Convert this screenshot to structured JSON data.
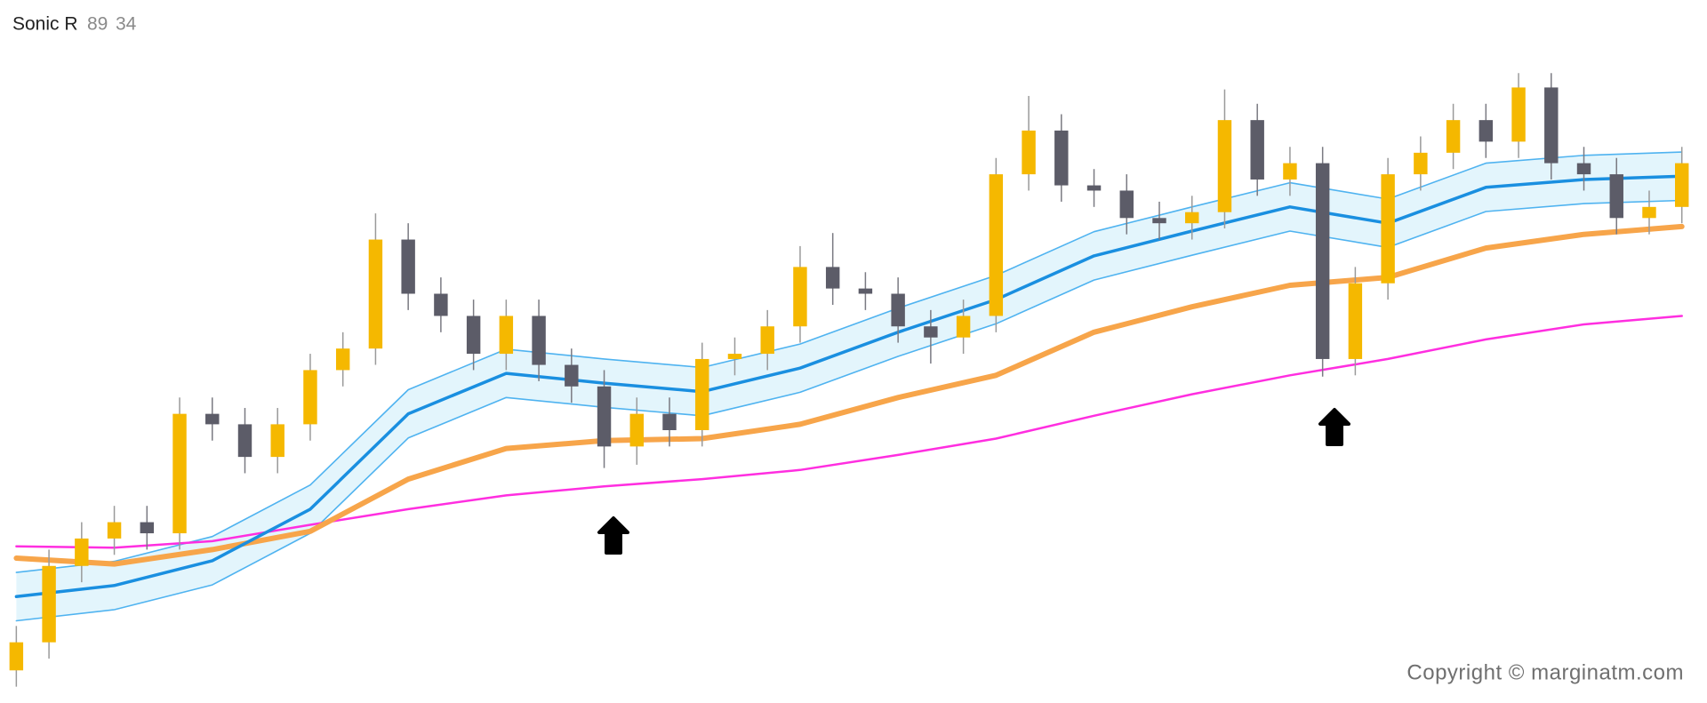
{
  "chart_data": {
    "type": "candlestick",
    "title": "Sonic R",
    "parameters": [
      89,
      34
    ],
    "watermark": "Copyright © marginatm.com",
    "xlim": [
      -0.5,
      51.77
    ],
    "ylim": [
      0,
      107.7
    ],
    "up_color": "#f5b800",
    "down_color": "#5c5c68",
    "x": [
      0,
      1,
      2,
      3,
      4,
      5,
      6,
      7,
      8,
      9,
      10,
      11,
      12,
      13,
      14,
      15,
      16,
      17,
      18,
      19,
      20,
      21,
      22,
      23,
      24,
      25,
      26,
      27,
      28,
      29,
      30,
      31,
      32,
      33,
      34,
      35,
      36,
      37,
      38,
      39,
      40,
      41,
      42,
      43,
      44,
      45,
      46,
      47,
      48,
      49,
      50,
      51
    ],
    "open": [
      5,
      9.3,
      21,
      25.2,
      27.7,
      26,
      44.3,
      42.7,
      37.7,
      42.7,
      51,
      54.3,
      71,
      62.7,
      59.3,
      53.5,
      59.3,
      51.8,
      48.5,
      39.3,
      44.3,
      41.8,
      52.7,
      53.5,
      57.7,
      66.8,
      63.5,
      62.7,
      57.7,
      56,
      59.3,
      81,
      87.7,
      79.3,
      78.5,
      74.3,
      73.5,
      75.2,
      89.3,
      80.2,
      82.7,
      52.7,
      64.3,
      81,
      84.3,
      89.3,
      86,
      94.3,
      82.7,
      81,
      74.3,
      76
    ],
    "high": [
      11.8,
      23.5,
      27.7,
      30.2,
      30.2,
      46.8,
      46.8,
      45.2,
      45.2,
      53.5,
      56.8,
      75,
      73.5,
      65.2,
      61.8,
      61.8,
      61.8,
      54.3,
      51,
      46.8,
      46.8,
      55.2,
      56,
      60.2,
      70,
      72,
      66,
      65.2,
      60.2,
      61.8,
      83.5,
      93,
      90.2,
      81.8,
      81,
      76.8,
      77.7,
      94,
      91.8,
      85.2,
      85.2,
      66.8,
      83.5,
      86.8,
      91.8,
      91.8,
      96.5,
      96.5,
      85.2,
      83.5,
      78.5,
      85.2
    ],
    "low": [
      2.5,
      6.8,
      18.5,
      22.7,
      23.5,
      23.5,
      40.2,
      35.2,
      35.2,
      40.2,
      48.5,
      51.8,
      60.2,
      56.8,
      51,
      51,
      49.3,
      46,
      36,
      36.5,
      39.3,
      39.3,
      50.2,
      51,
      55.2,
      61,
      60.2,
      55.2,
      52,
      53.5,
      56.8,
      78.5,
      76.8,
      76,
      71.8,
      71,
      71,
      72.7,
      77.7,
      77.7,
      50,
      50.2,
      61.8,
      78.5,
      81.8,
      83.5,
      83.5,
      80.2,
      78.5,
      71.8,
      71.8,
      73.5
    ],
    "close": [
      9.3,
      21,
      25.2,
      27.7,
      26,
      44.3,
      42.7,
      37.7,
      42.7,
      51,
      54.3,
      71,
      62.7,
      59.3,
      53.5,
      59.3,
      51.8,
      48.5,
      39.3,
      44.3,
      41.8,
      52.7,
      53.5,
      57.7,
      66.8,
      63.5,
      62.7,
      57.7,
      56,
      59.3,
      81,
      87.7,
      79.3,
      78.5,
      74.3,
      73.5,
      75.2,
      89.3,
      80.2,
      82.7,
      52.7,
      64.3,
      81,
      84.3,
      89.3,
      86,
      94.3,
      82.7,
      81,
      74.3,
      76,
      82.7
    ],
    "band": {
      "color": "#4fb3f0",
      "fill": "#e3f5fc",
      "upper": {
        "x": [
          0,
          3,
          6,
          9,
          12,
          15,
          18,
          21,
          24,
          27,
          30,
          33,
          36,
          39,
          42,
          45,
          48,
          51
        ],
        "values": [
          20,
          21.7,
          25.5,
          33.4,
          48,
          54.2,
          52.7,
          51.4,
          55,
          60.5,
          65.5,
          72.2,
          76,
          79.7,
          77.2,
          82.7,
          83.9,
          84.4
        ]
      },
      "lower": {
        "x": [
          0,
          3,
          6,
          9,
          12,
          15,
          18,
          21,
          24,
          27,
          30,
          33,
          36,
          39,
          42,
          45,
          48,
          51
        ],
        "values": [
          12.6,
          14.3,
          18.1,
          26,
          40.6,
          46.8,
          45.3,
          44,
          47.6,
          53.1,
          58.1,
          64.8,
          68.6,
          72.3,
          69.8,
          75.3,
          76.5,
          77
        ]
      }
    },
    "lines": [
      {
        "color": "#ff2ee0",
        "width": 2.5,
        "x": [
          0,
          3,
          6,
          9,
          12,
          15,
          18,
          21,
          24,
          27,
          30,
          33,
          36,
          39,
          42,
          45,
          48,
          51
        ],
        "values": [
          24,
          23.8,
          24.8,
          27.3,
          29.7,
          31.8,
          33.2,
          34.3,
          35.7,
          38,
          40.5,
          44,
          47.3,
          50.2,
          52.7,
          55.7,
          58,
          59.3
        ]
      },
      {
        "color": "#f7a54a",
        "width": 6,
        "x": [
          0,
          3,
          6,
          9,
          12,
          15,
          18,
          21,
          24,
          27,
          30,
          33,
          36,
          39,
          42,
          45,
          48,
          51
        ],
        "values": [
          22.2,
          21.3,
          23.5,
          26.3,
          34.3,
          39,
          40.2,
          40.5,
          42.7,
          46.8,
          50.2,
          56.8,
          60.7,
          64,
          65.2,
          69.7,
          71.8,
          73
        ]
      },
      {
        "color": "#1a8fe0",
        "width": 3.5,
        "x": [
          0,
          3,
          6,
          9,
          12,
          15,
          18,
          21,
          24,
          27,
          30,
          33,
          36,
          39,
          42,
          45,
          48,
          51
        ],
        "values": [
          16.3,
          18,
          21.8,
          29.7,
          44.3,
          50.5,
          49,
          47.7,
          51.3,
          56.8,
          61.8,
          68.5,
          72.3,
          76,
          73.5,
          79,
          80.2,
          80.7
        ]
      }
    ]
  }
}
